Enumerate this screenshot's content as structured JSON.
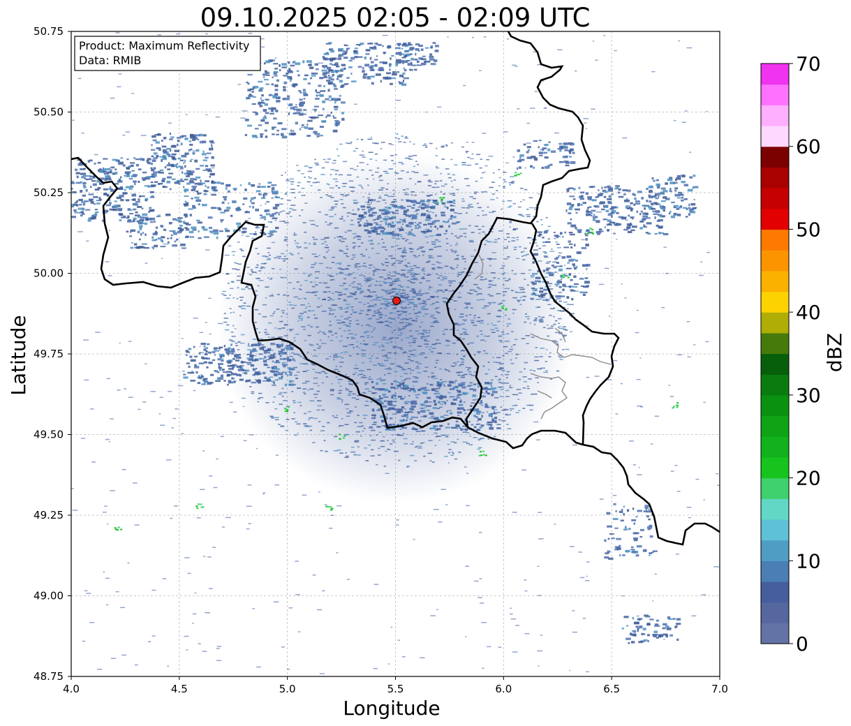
{
  "title": "09.10.2025 02:05 - 02:09 UTC",
  "xlabel": "Longitude",
  "ylabel": "Latitude",
  "info_box": {
    "line1": "Product: Maximum Reflectivity",
    "line2": "Data: RMIB"
  },
  "x_ticks": [
    "4.0",
    "4.5",
    "5.0",
    "5.5",
    "6.0",
    "6.5",
    "7.0"
  ],
  "y_ticks": [
    "48.75",
    "49.00",
    "49.25",
    "49.50",
    "49.75",
    "50.00",
    "50.25",
    "50.50",
    "50.75"
  ],
  "colorbar": {
    "label": "dBZ",
    "ticks": [
      "0",
      "10",
      "20",
      "30",
      "40",
      "50",
      "60",
      "70"
    ],
    "colors": [
      "#6473a6",
      "#55679e",
      "#465e9e",
      "#4a7eb5",
      "#4f9dc4",
      "#5fc1d7",
      "#62d7c6",
      "#3fd16d",
      "#16c41d",
      "#11b21b",
      "#0ea416",
      "#0b9110",
      "#0a7b0e",
      "#075e0b",
      "#467a0b",
      "#afad06",
      "#fcd200",
      "#fbb100",
      "#fc9400",
      "#fd7900",
      "#e20000",
      "#c60000",
      "#a90000",
      "#7b0000",
      "#ffd8ff",
      "#ffafff",
      "#ff72ff",
      "#ef33ef"
    ]
  },
  "chart_data": {
    "type": "map",
    "xlim": [
      4.0,
      7.0
    ],
    "ylim": [
      48.75,
      50.75
    ],
    "grid": true,
    "radar_site": {
      "lon": 5.505,
      "lat": 49.915,
      "color": "#e21a1a"
    },
    "colorbar_range": [
      0,
      70
    ]
  }
}
